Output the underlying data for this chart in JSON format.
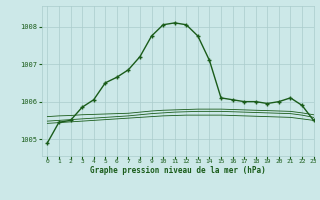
{
  "title": "Graphe pression niveau de la mer (hPa)",
  "background_color": "#cce8e8",
  "grid_color": "#aacccc",
  "line_color": "#1a5c1a",
  "xlim": [
    -0.5,
    23
  ],
  "ylim": [
    1004.55,
    1008.55
  ],
  "yticks": [
    1005,
    1006,
    1007,
    1008
  ],
  "xticks": [
    0,
    1,
    2,
    3,
    4,
    5,
    6,
    7,
    8,
    9,
    10,
    11,
    12,
    13,
    14,
    15,
    16,
    17,
    18,
    19,
    20,
    21,
    22,
    23
  ],
  "line1_x": [
    0,
    1,
    2,
    3,
    4,
    5,
    6,
    7,
    8,
    9,
    10,
    11,
    12,
    13,
    14,
    15,
    16,
    17,
    18,
    19,
    20,
    21,
    22,
    23
  ],
  "line1_y": [
    1004.9,
    1005.45,
    1005.5,
    1005.85,
    1006.05,
    1006.5,
    1006.65,
    1006.85,
    1007.2,
    1007.75,
    1008.05,
    1008.1,
    1008.05,
    1007.75,
    1007.1,
    1006.1,
    1006.05,
    1006.0,
    1006.0,
    1005.95,
    1006.0,
    1006.1,
    1005.9,
    1005.5
  ],
  "line2_x": [
    0,
    1,
    2,
    3,
    4,
    5,
    6,
    7,
    8,
    9,
    10,
    11,
    12,
    13,
    14,
    15,
    16,
    17,
    18,
    19,
    20,
    21,
    22,
    23
  ],
  "line2_y": [
    1005.6,
    1005.62,
    1005.63,
    1005.65,
    1005.66,
    1005.67,
    1005.68,
    1005.69,
    1005.72,
    1005.75,
    1005.77,
    1005.78,
    1005.79,
    1005.8,
    1005.8,
    1005.8,
    1005.79,
    1005.78,
    1005.77,
    1005.76,
    1005.75,
    1005.74,
    1005.7,
    1005.65
  ],
  "line3_x": [
    0,
    1,
    2,
    3,
    4,
    5,
    6,
    7,
    8,
    9,
    10,
    11,
    12,
    13,
    14,
    15,
    16,
    17,
    18,
    19,
    20,
    21,
    22,
    23
  ],
  "line3_y": [
    1005.48,
    1005.5,
    1005.52,
    1005.54,
    1005.56,
    1005.58,
    1005.6,
    1005.62,
    1005.65,
    1005.68,
    1005.7,
    1005.72,
    1005.73,
    1005.74,
    1005.74,
    1005.74,
    1005.73,
    1005.72,
    1005.71,
    1005.7,
    1005.69,
    1005.68,
    1005.64,
    1005.58
  ],
  "line4_x": [
    0,
    1,
    2,
    3,
    4,
    5,
    6,
    7,
    8,
    9,
    10,
    11,
    12,
    13,
    14,
    15,
    16,
    17,
    18,
    19,
    20,
    21,
    22,
    23
  ],
  "line4_y": [
    1005.42,
    1005.44,
    1005.46,
    1005.48,
    1005.5,
    1005.52,
    1005.54,
    1005.56,
    1005.58,
    1005.6,
    1005.62,
    1005.63,
    1005.64,
    1005.64,
    1005.64,
    1005.64,
    1005.63,
    1005.62,
    1005.61,
    1005.6,
    1005.59,
    1005.58,
    1005.54,
    1005.5
  ]
}
